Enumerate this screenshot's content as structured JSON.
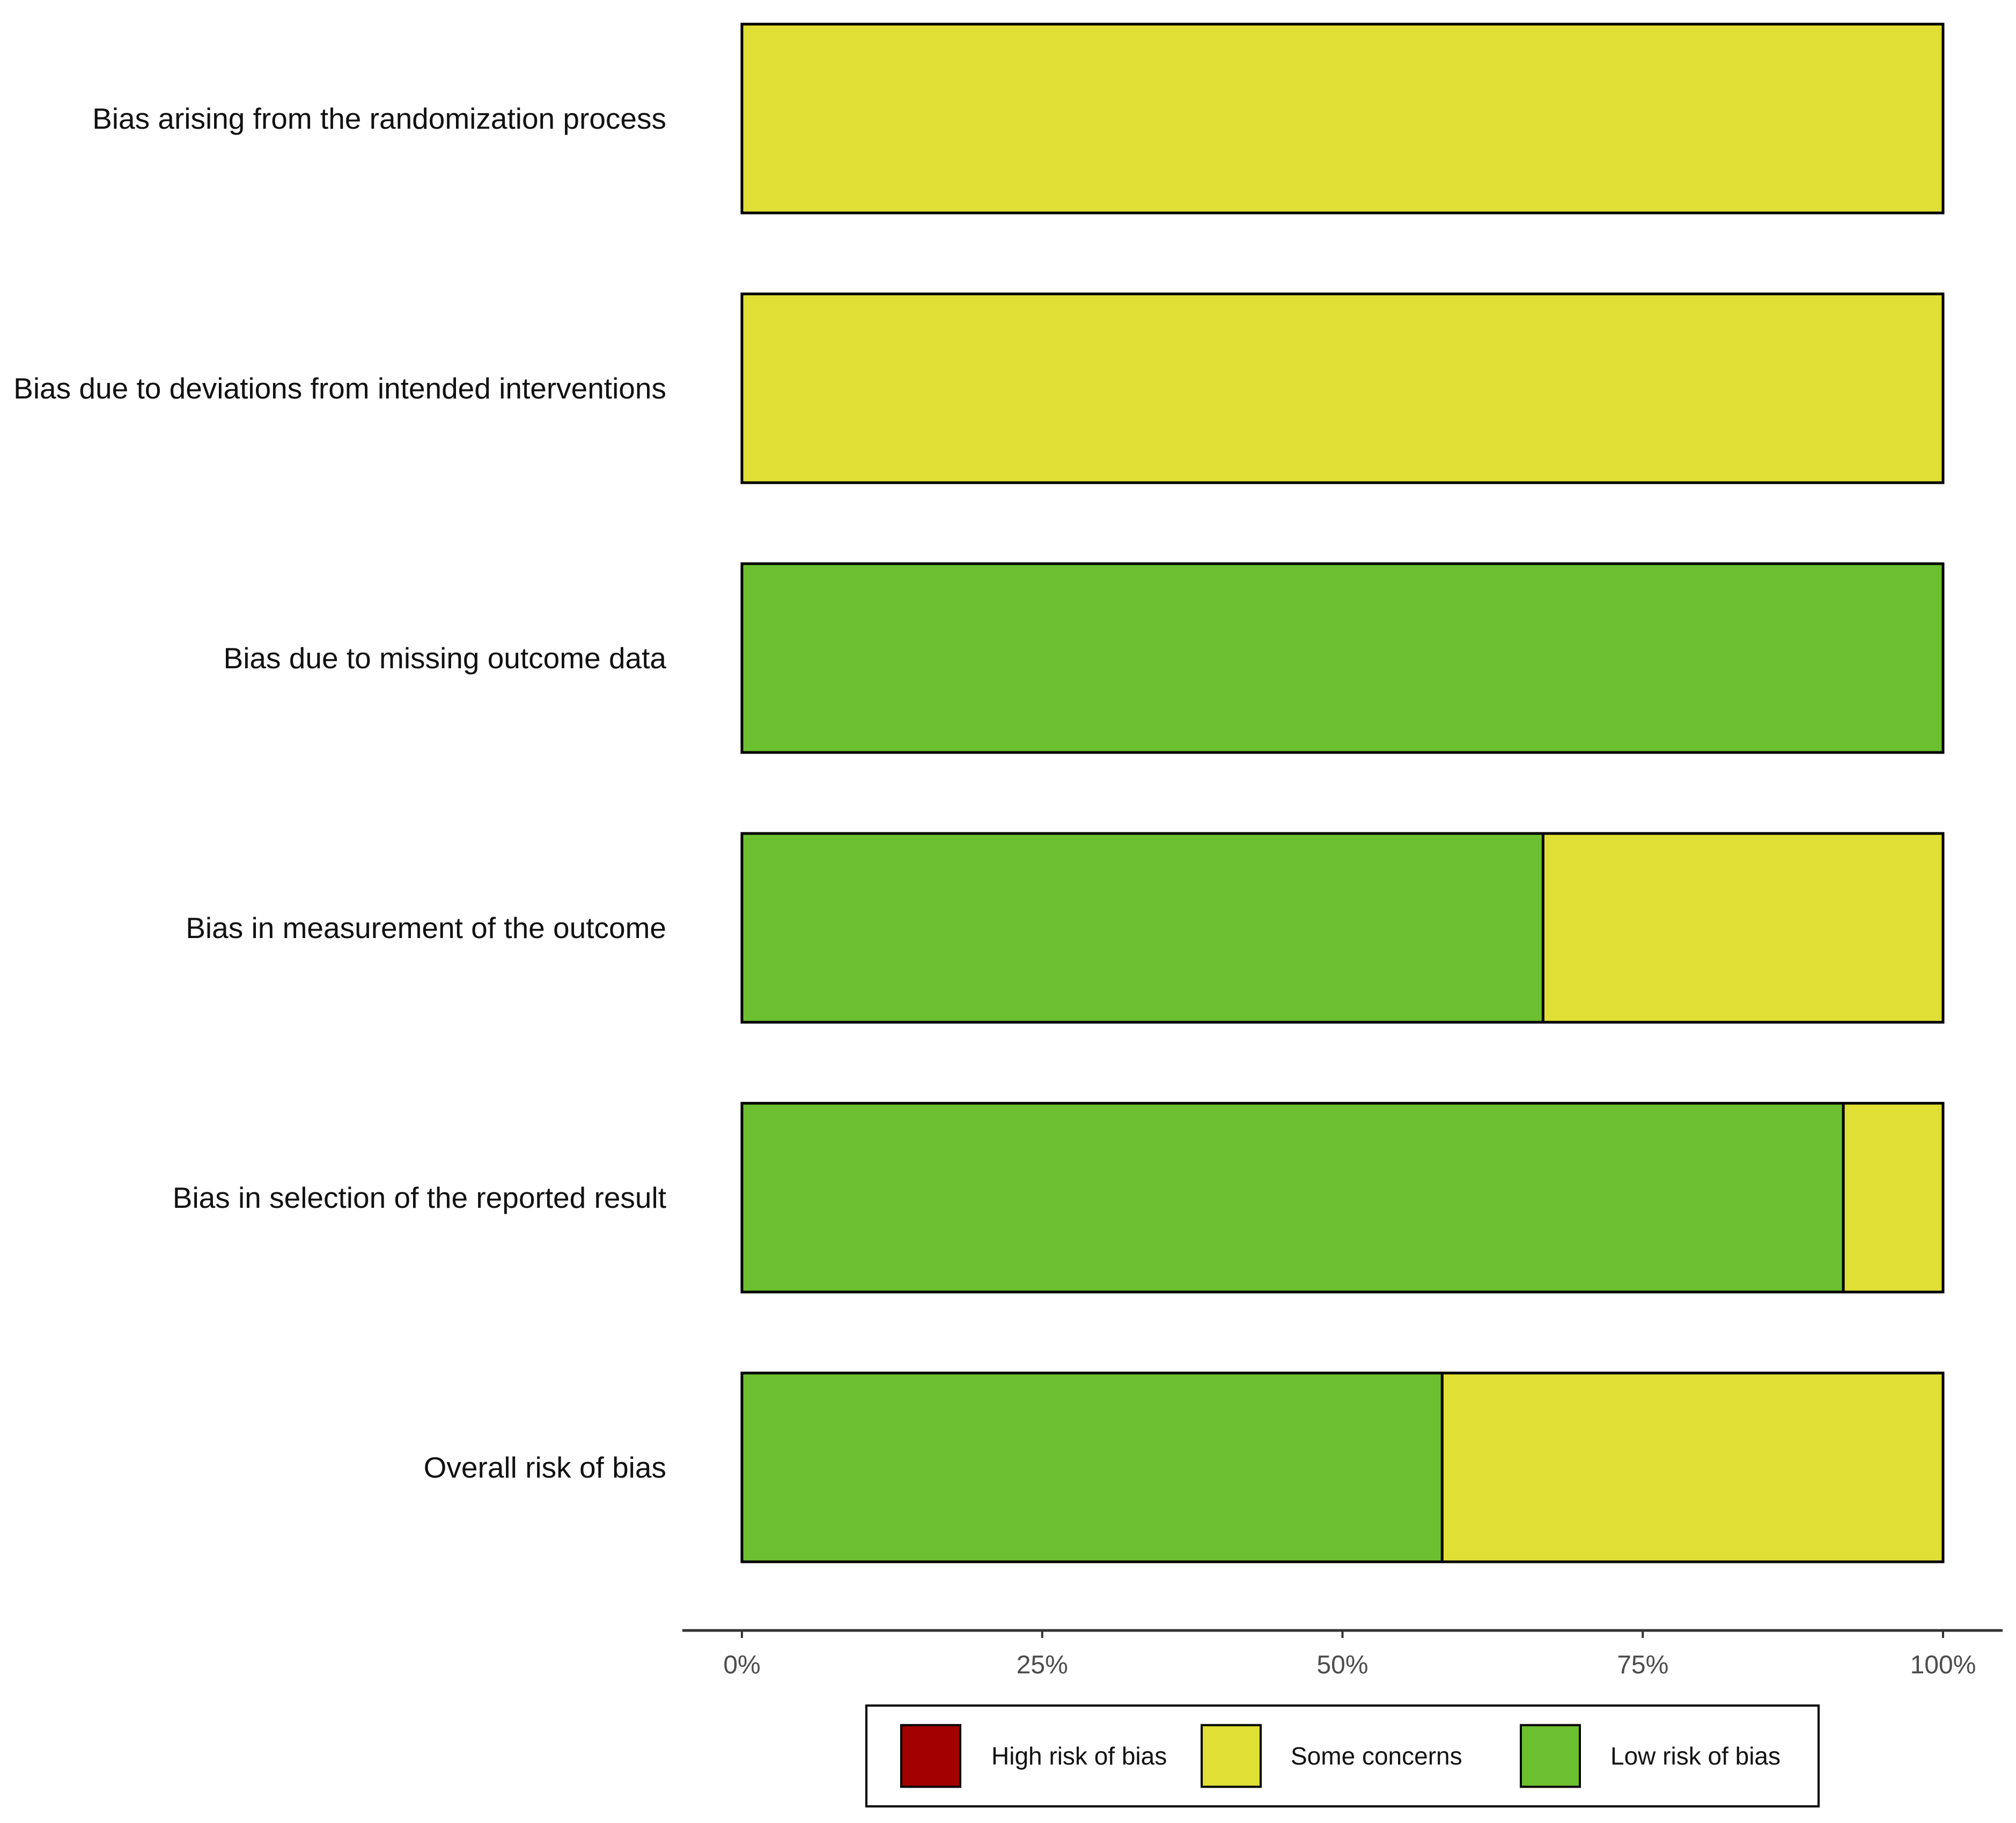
{
  "chart_data": {
    "type": "bar",
    "orientation": "horizontal",
    "stacked": true,
    "title": "",
    "xlabel": "",
    "ylabel": "",
    "xlim": [
      0,
      100
    ],
    "categories": [
      "Bias arising from the randomization process",
      "Bias due to deviations from intended interventions",
      "Bias due to missing outcome data",
      "Bias in measurement of the outcome",
      "Bias in selection of the reported result",
      "Overall risk of bias"
    ],
    "series": [
      {
        "name": "Low risk of bias",
        "color": "#6cc02f",
        "values": [
          0,
          0,
          100,
          66.7,
          91.7,
          58.3
        ]
      },
      {
        "name": "Some concerns",
        "color": "#e0df36",
        "values": [
          100,
          100,
          0,
          33.3,
          8.3,
          41.7
        ]
      },
      {
        "name": "High risk of bias",
        "color": "#a30000",
        "values": [
          0,
          0,
          0,
          0,
          0,
          0
        ]
      }
    ],
    "x_ticks": [
      "0%",
      "25%",
      "50%",
      "75%",
      "100%"
    ],
    "x_tick_values": [
      0,
      25,
      50,
      75,
      100
    ],
    "legend": {
      "position": "bottom",
      "items": [
        {
          "label": "High risk of bias",
          "color": "#a30000"
        },
        {
          "label": "Some concerns",
          "color": "#e0df36"
        },
        {
          "label": "Low risk of bias",
          "color": "#6cc02f"
        }
      ]
    },
    "grid": false
  }
}
